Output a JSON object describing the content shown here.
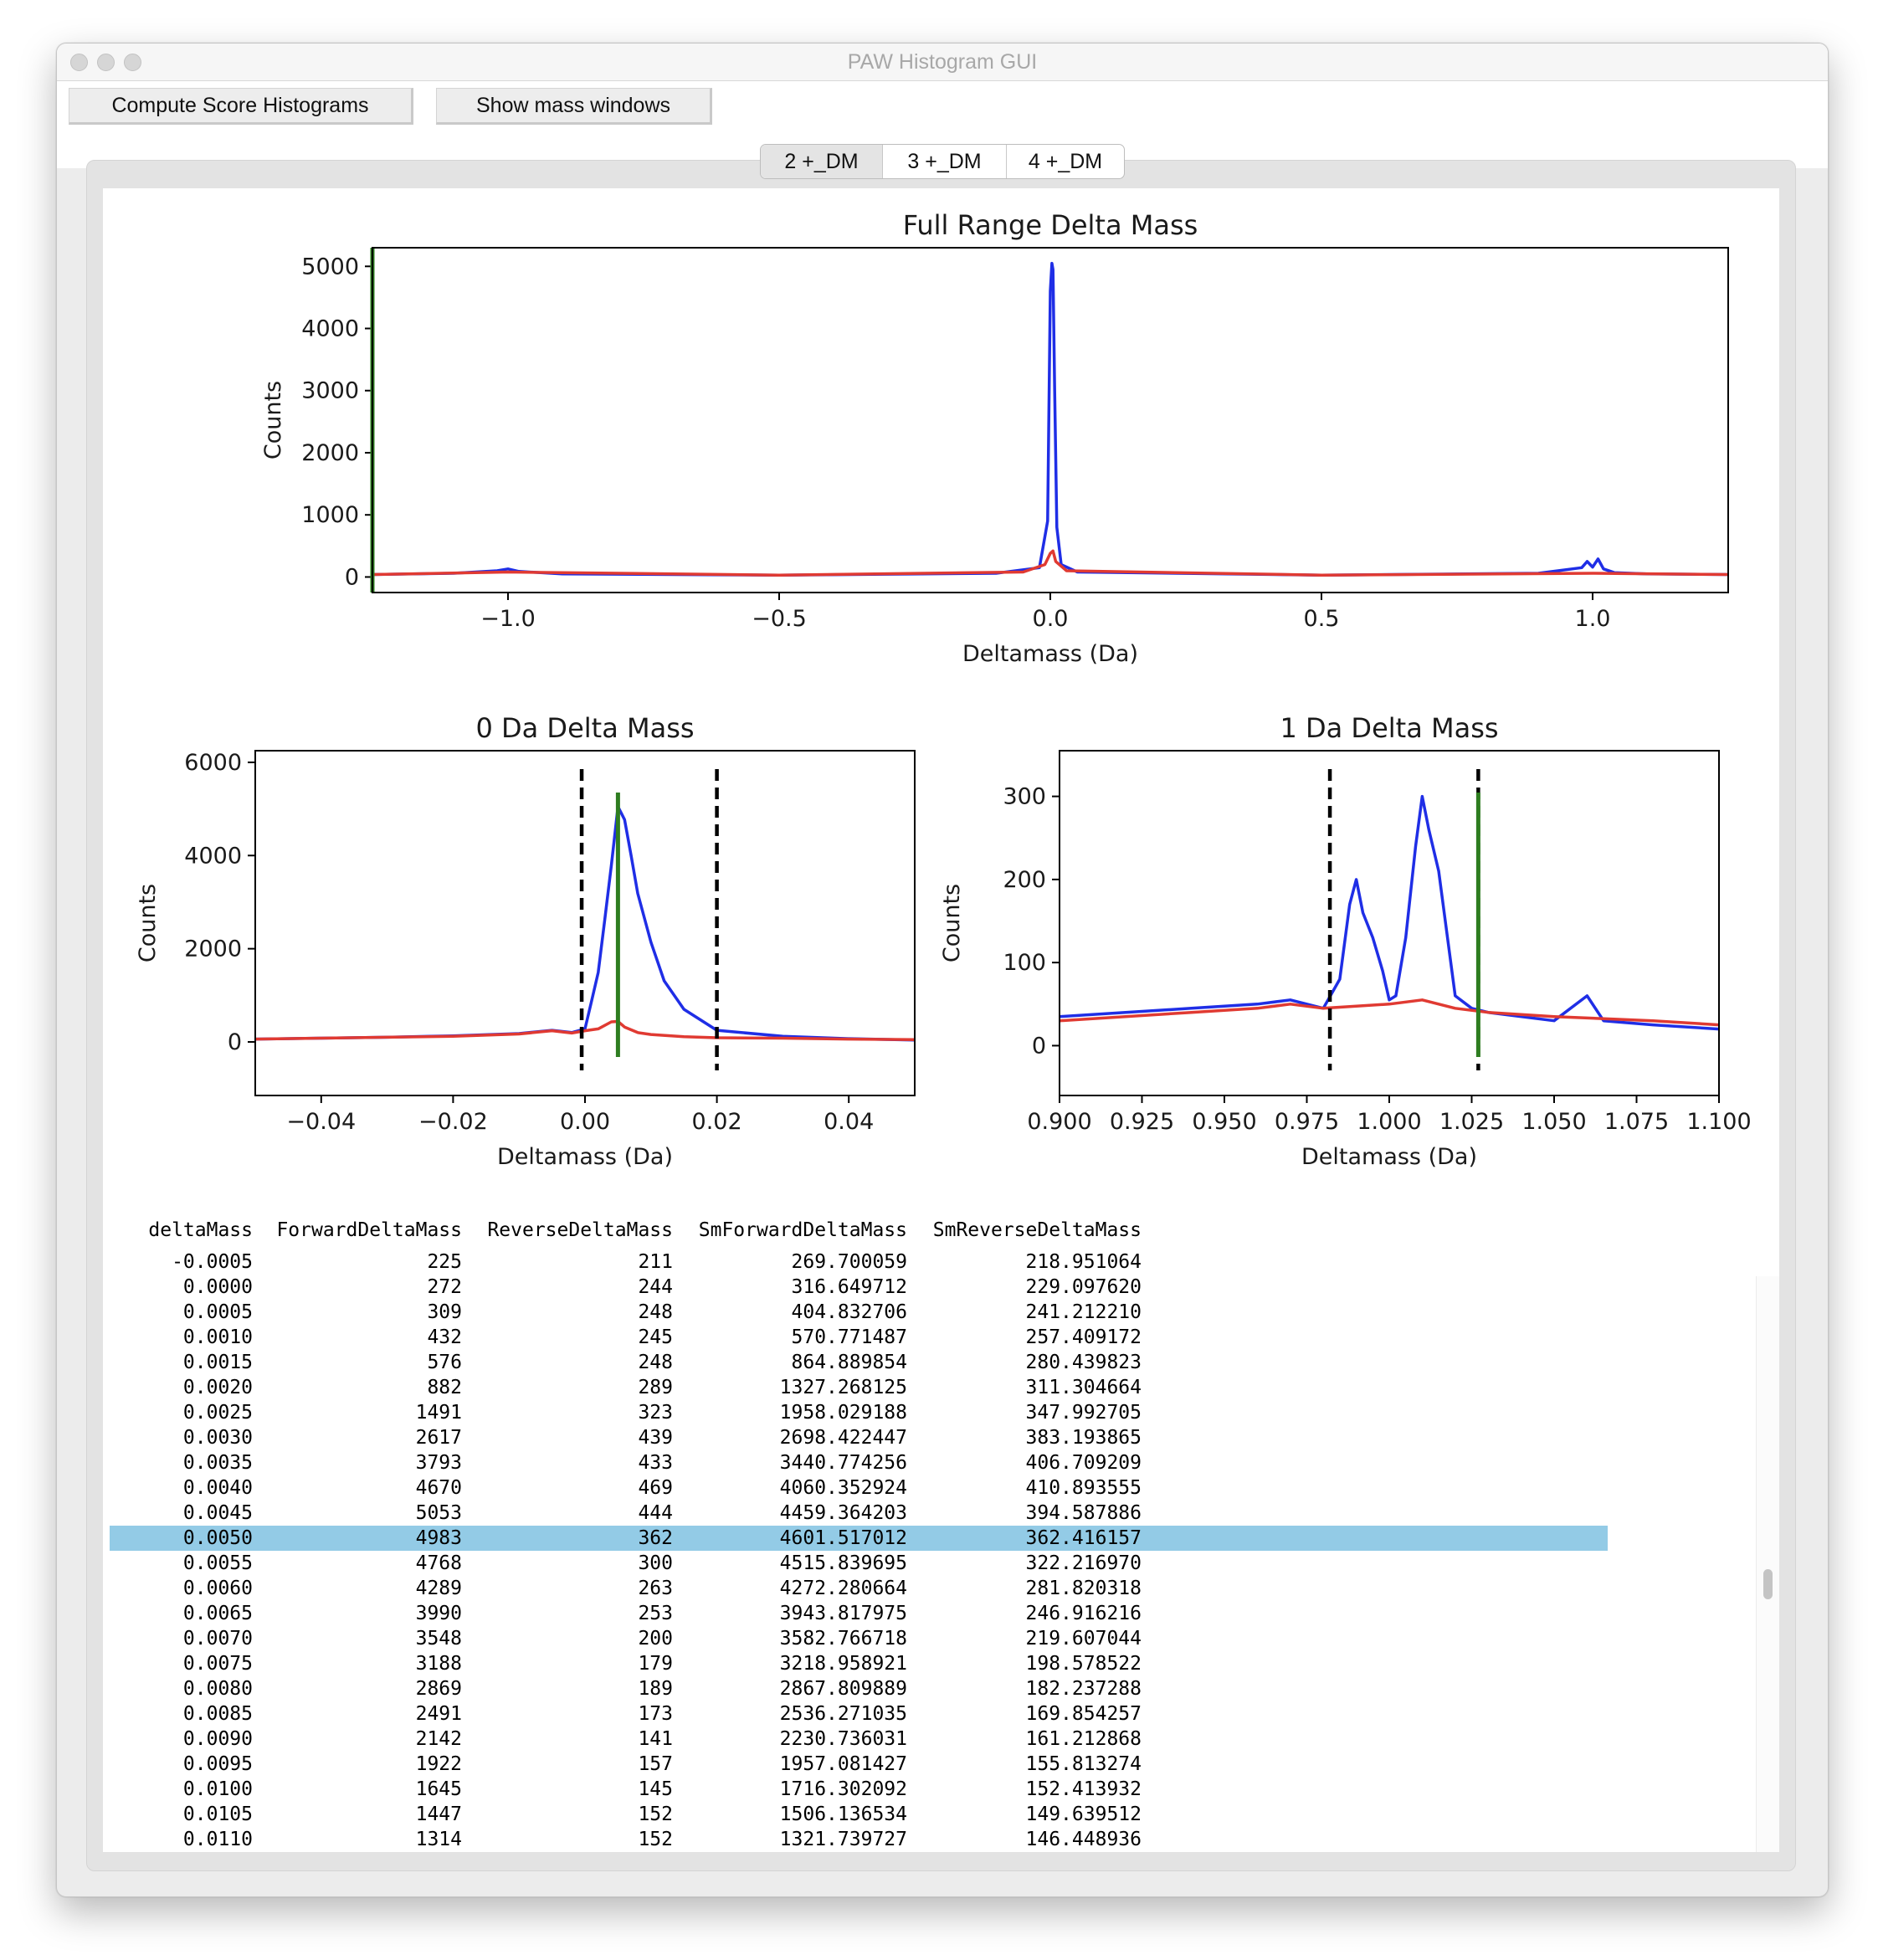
{
  "window": {
    "title": "PAW Histogram GUI"
  },
  "toolbar": {
    "compute_label": "Compute Score Histograms",
    "mass_windows_label": "Show mass windows"
  },
  "tabs": [
    {
      "label": "2 +_DM",
      "active": true
    },
    {
      "label": "3 +_DM",
      "active": false
    },
    {
      "label": "4 +_DM",
      "active": false
    }
  ],
  "colors": {
    "forward": "#1f2ee6",
    "reverse": "#e03a32",
    "window_lines": "#000000",
    "center_line": "#2e7d20",
    "selected_row": "#93cbe6"
  },
  "chart_data": [
    {
      "type": "line",
      "title": "Full Range Delta Mass",
      "xlabel": "Deltamass (Da)",
      "ylabel": "Counts",
      "xlim": [
        -1.25,
        1.25
      ],
      "ylim": [
        -250,
        5300
      ],
      "xticks": [
        -1.0,
        -0.5,
        0.0,
        0.5,
        1.0
      ],
      "xtick_labels": [
        "−1.0",
        "−0.5",
        "0.0",
        "0.5",
        "1.0"
      ],
      "yticks": [
        0,
        1000,
        2000,
        3000,
        4000,
        5000
      ],
      "ytick_labels": [
        "0",
        "1000",
        "2000",
        "3000",
        "4000",
        "5000"
      ],
      "series": [
        {
          "color": "blue",
          "x": [
            -1.25,
            -1.1,
            -1.02,
            -1.0,
            -0.98,
            -0.9,
            -0.5,
            -0.1,
            -0.02,
            -0.005,
            0.0,
            0.003,
            0.005,
            0.008,
            0.012,
            0.02,
            0.05,
            0.5,
            0.9,
            0.98,
            0.99,
            1.0,
            1.01,
            1.02,
            1.04,
            1.1,
            1.25
          ],
          "y": [
            40,
            60,
            100,
            130,
            90,
            50,
            30,
            60,
            150,
            900,
            4600,
            5050,
            4950,
            3000,
            800,
            200,
            80,
            30,
            60,
            150,
            250,
            160,
            290,
            130,
            70,
            50,
            40
          ]
        },
        {
          "color": "red",
          "x": [
            -1.25,
            -1.0,
            -0.5,
            -0.05,
            -0.01,
            0.0,
            0.005,
            0.01,
            0.03,
            0.5,
            1.0,
            1.25
          ],
          "y": [
            40,
            80,
            30,
            80,
            200,
            380,
            420,
            250,
            100,
            30,
            60,
            40
          ]
        }
      ],
      "vlines": [
        {
          "x": -1.25,
          "color": "green"
        }
      ]
    },
    {
      "type": "line",
      "title": "0 Da Delta Mass",
      "xlabel": "Deltamass (Da)",
      "ylabel": "Counts",
      "xlim": [
        -0.05,
        0.05
      ],
      "ylim": [
        -1150,
        6250
      ],
      "xticks": [
        -0.04,
        -0.02,
        0.0,
        0.02,
        0.04
      ],
      "xtick_labels": [
        "−0.04",
        "−0.02",
        "0.00",
        "0.02",
        "0.04"
      ],
      "yticks": [
        0,
        2000,
        4000,
        6000
      ],
      "ytick_labels": [
        "0",
        "2000",
        "4000",
        "6000"
      ],
      "series": [
        {
          "color": "blue",
          "x": [
            -0.05,
            -0.04,
            -0.03,
            -0.02,
            -0.01,
            -0.005,
            -0.002,
            0.0,
            0.001,
            0.002,
            0.003,
            0.004,
            0.005,
            0.006,
            0.007,
            0.008,
            0.01,
            0.012,
            0.015,
            0.02,
            0.03,
            0.04,
            0.05
          ],
          "y": [
            60,
            80,
            100,
            130,
            180,
            250,
            200,
            280,
            880,
            1490,
            2620,
            3790,
            5050,
            4770,
            3990,
            3190,
            2140,
            1310,
            700,
            250,
            120,
            70,
            40
          ]
        },
        {
          "color": "red",
          "x": [
            -0.05,
            -0.04,
            -0.03,
            -0.02,
            -0.01,
            -0.005,
            -0.002,
            0.0,
            0.002,
            0.004,
            0.005,
            0.006,
            0.008,
            0.01,
            0.015,
            0.02,
            0.03,
            0.04,
            0.05
          ],
          "y": [
            60,
            80,
            100,
            120,
            170,
            240,
            190,
            240,
            280,
            430,
            440,
            320,
            200,
            160,
            110,
            90,
            80,
            60,
            50
          ]
        }
      ],
      "vlines": [
        {
          "x": -0.0005,
          "style": "dashed",
          "color": "black"
        },
        {
          "x": 0.02,
          "style": "dashed",
          "color": "black"
        },
        {
          "x": 0.005,
          "style": "solid",
          "color": "green"
        }
      ]
    },
    {
      "type": "line",
      "title": "1 Da Delta Mass",
      "xlabel": "Deltamass (Da)",
      "ylabel": "Counts",
      "xlim": [
        0.9,
        1.1
      ],
      "ylim": [
        -60,
        355
      ],
      "xticks": [
        0.9,
        0.925,
        0.95,
        0.975,
        1.0,
        1.025,
        1.05,
        1.075,
        1.1
      ],
      "xtick_labels": [
        "0.900",
        "0.925",
        "0.950",
        "0.975",
        "1.000",
        "1.025",
        "1.050",
        "1.075",
        "1.100"
      ],
      "yticks": [
        0,
        100,
        200,
        300
      ],
      "ytick_labels": [
        "0",
        "100",
        "200",
        "300"
      ],
      "series": [
        {
          "color": "blue",
          "x": [
            0.9,
            0.92,
            0.94,
            0.96,
            0.97,
            0.98,
            0.985,
            0.988,
            0.99,
            0.992,
            0.995,
            0.998,
            1.0,
            1.002,
            1.005,
            1.008,
            1.01,
            1.012,
            1.015,
            1.018,
            1.02,
            1.025,
            1.03,
            1.05,
            1.06,
            1.065,
            1.08,
            1.1
          ],
          "y": [
            35,
            40,
            45,
            50,
            55,
            45,
            80,
            170,
            200,
            160,
            130,
            90,
            55,
            60,
            130,
            240,
            300,
            260,
            210,
            120,
            60,
            45,
            40,
            30,
            60,
            30,
            25,
            20
          ]
        },
        {
          "color": "red",
          "x": [
            0.9,
            0.92,
            0.94,
            0.96,
            0.97,
            0.98,
            1.0,
            1.01,
            1.02,
            1.03,
            1.05,
            1.08,
            1.1
          ],
          "y": [
            30,
            35,
            40,
            45,
            50,
            45,
            50,
            55,
            45,
            40,
            35,
            30,
            25
          ]
        }
      ],
      "vlines": [
        {
          "x": 0.982,
          "style": "dashed",
          "color": "black"
        },
        {
          "x": 1.027,
          "style": "dashed",
          "color": "black"
        },
        {
          "x": 1.027,
          "style": "solid",
          "color": "green"
        }
      ]
    }
  ],
  "table": {
    "columns": [
      "deltaMass",
      "ForwardDeltaMass",
      "ReverseDeltaMass",
      "SmForwardDeltaMass",
      "SmReverseDeltaMass"
    ],
    "selected_index": 11,
    "rows": [
      [
        "-0.0005",
        "225",
        "211",
        "269.700059",
        "218.951064"
      ],
      [
        "0.0000",
        "272",
        "244",
        "316.649712",
        "229.097620"
      ],
      [
        "0.0005",
        "309",
        "248",
        "404.832706",
        "241.212210"
      ],
      [
        "0.0010",
        "432",
        "245",
        "570.771487",
        "257.409172"
      ],
      [
        "0.0015",
        "576",
        "248",
        "864.889854",
        "280.439823"
      ],
      [
        "0.0020",
        "882",
        "289",
        "1327.268125",
        "311.304664"
      ],
      [
        "0.0025",
        "1491",
        "323",
        "1958.029188",
        "347.992705"
      ],
      [
        "0.0030",
        "2617",
        "439",
        "2698.422447",
        "383.193865"
      ],
      [
        "0.0035",
        "3793",
        "433",
        "3440.774256",
        "406.709209"
      ],
      [
        "0.0040",
        "4670",
        "469",
        "4060.352924",
        "410.893555"
      ],
      [
        "0.0045",
        "5053",
        "444",
        "4459.364203",
        "394.587886"
      ],
      [
        "0.0050",
        "4983",
        "362",
        "4601.517012",
        "362.416157"
      ],
      [
        "0.0055",
        "4768",
        "300",
        "4515.839695",
        "322.216970"
      ],
      [
        "0.0060",
        "4289",
        "263",
        "4272.280664",
        "281.820318"
      ],
      [
        "0.0065",
        "3990",
        "253",
        "3943.817975",
        "246.916216"
      ],
      [
        "0.0070",
        "3548",
        "200",
        "3582.766718",
        "219.607044"
      ],
      [
        "0.0075",
        "3188",
        "179",
        "3218.958921",
        "198.578522"
      ],
      [
        "0.0080",
        "2869",
        "189",
        "2867.809889",
        "182.237288"
      ],
      [
        "0.0085",
        "2491",
        "173",
        "2536.271035",
        "169.854257"
      ],
      [
        "0.0090",
        "2142",
        "141",
        "2230.736031",
        "161.212868"
      ],
      [
        "0.0095",
        "1922",
        "157",
        "1957.081427",
        "155.813274"
      ],
      [
        "0.0100",
        "1645",
        "145",
        "1716.302092",
        "152.413932"
      ],
      [
        "0.0105",
        "1447",
        "152",
        "1506.136534",
        "149.639512"
      ],
      [
        "0.0110",
        "1314",
        "152",
        "1321.739727",
        "146.448936"
      ]
    ]
  }
}
